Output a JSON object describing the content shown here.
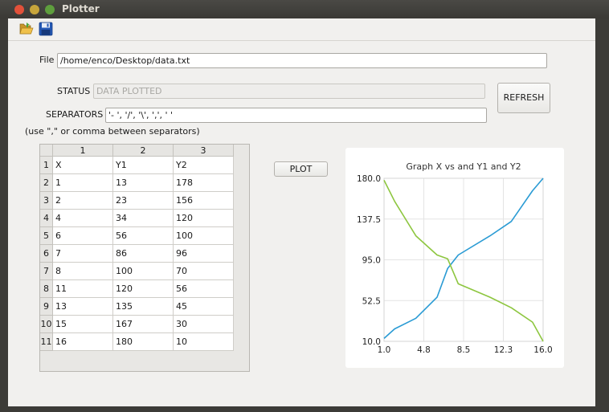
{
  "window": {
    "title": "Plotter"
  },
  "toolbar": {
    "open_icon": "folder-open-icon",
    "save_icon": "floppy-save-icon"
  },
  "form": {
    "file_label": "File",
    "file_value": "/home/enco/Desktop/data.txt",
    "status_label": "STATUS",
    "status_value": "DATA PLOTTED",
    "separators_label": "SEPARATORS",
    "separators_value": "'- ', '/', '\\', ',', ' '",
    "hint": "(use \",\" or comma between separators)",
    "refresh_label": "REFRESH",
    "plot_label": "PLOT"
  },
  "table": {
    "column_headers": [
      "1",
      "2",
      "3"
    ],
    "row_headers": [
      "1",
      "2",
      "3",
      "4",
      "5",
      "6",
      "7",
      "8",
      "9",
      "10",
      "11"
    ],
    "rows": [
      [
        "X",
        "Y1",
        "Y2"
      ],
      [
        "1",
        "13",
        "178"
      ],
      [
        "2",
        "23",
        "156"
      ],
      [
        "4",
        "34",
        "120"
      ],
      [
        "6",
        "56",
        "100"
      ],
      [
        "7",
        "86",
        "96"
      ],
      [
        "8",
        "100",
        "70"
      ],
      [
        "11",
        "120",
        "56"
      ],
      [
        "13",
        "135",
        "45"
      ],
      [
        "15",
        "167",
        "30"
      ],
      [
        "16",
        "180",
        "10"
      ]
    ]
  },
  "chart_data": {
    "type": "line",
    "title": "Graph X vs and Y1 and Y2",
    "x": [
      1,
      2,
      4,
      6,
      7,
      8,
      11,
      13,
      15,
      16
    ],
    "series": [
      {
        "name": "Y1",
        "color": "#2a9bd4",
        "values": [
          13,
          23,
          34,
          56,
          86,
          100,
          120,
          135,
          167,
          180
        ]
      },
      {
        "name": "Y2",
        "color": "#8dc63f",
        "values": [
          178,
          156,
          120,
          100,
          96,
          70,
          56,
          45,
          30,
          10
        ]
      }
    ],
    "xlim": [
      1,
      16
    ],
    "ylim": [
      10,
      180
    ],
    "xticks": [
      "1.0",
      "4.8",
      "8.5",
      "12.3",
      "16.0"
    ],
    "yticks": [
      "180.0",
      "137.5",
      "95.0",
      "52.5",
      "10.0"
    ],
    "grid": true
  }
}
